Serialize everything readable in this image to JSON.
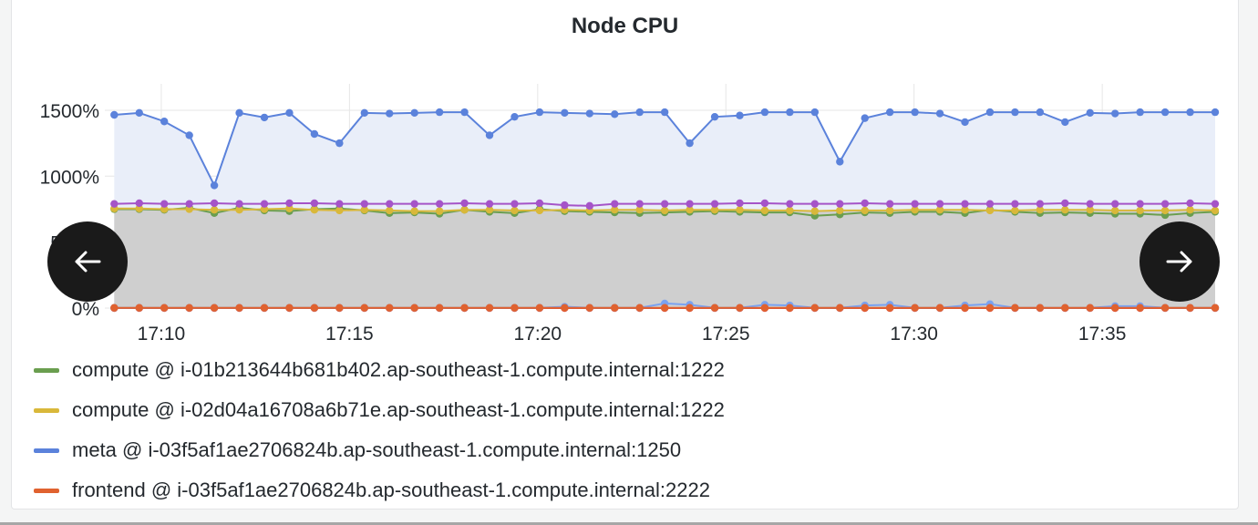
{
  "panel": {
    "title": "Node CPU"
  },
  "nav": {
    "prev_icon": "arrow-left-icon",
    "next_icon": "arrow-right-icon"
  },
  "colors": {
    "grid": "#e6e6e6",
    "band_fill": "#cfcfcf",
    "meta_fill": "#e9eef9",
    "button_bg": "#1a1a1a"
  },
  "chart_data": {
    "type": "line",
    "title": "Node CPU",
    "xlabel": "",
    "ylabel": "",
    "x_range": [
      "17:08:30",
      "17:38:00"
    ],
    "ylim": [
      0,
      1700
    ],
    "x_ticks": [
      "17:10",
      "17:15",
      "17:20",
      "17:25",
      "17:30",
      "17:35"
    ],
    "y_ticks": [
      "0%",
      "500%",
      "1000%",
      "1500%"
    ],
    "grid": true,
    "legend_position": "bottom",
    "series": [
      {
        "name": "compute @ i-01b213644b681b402.ap-southeast-1.compute.internal:1222",
        "color": "#6a9e4f",
        "values": [
          750,
          750,
          745,
          760,
          720,
          760,
          740,
          735,
          750,
          755,
          740,
          720,
          725,
          715,
          745,
          730,
          720,
          750,
          735,
          730,
          725,
          720,
          725,
          730,
          735,
          730,
          725,
          725,
          700,
          710,
          725,
          720,
          730,
          730,
          720,
          745,
          730,
          720,
          725,
          720,
          715,
          715,
          705,
          720,
          730
        ]
      },
      {
        "name": "compute @ i-02d04a16708a6b71e.ap-southeast-1.compute.internal:1222",
        "color": "#d9b83a",
        "values": [
          755,
          755,
          750,
          750,
          745,
          745,
          750,
          755,
          745,
          740,
          745,
          740,
          735,
          735,
          745,
          745,
          740,
          740,
          745,
          740,
          745,
          745,
          740,
          745,
          745,
          745,
          740,
          740,
          735,
          740,
          740,
          740,
          745,
          745,
          745,
          740,
          740,
          745,
          745,
          745,
          740,
          740,
          740,
          745,
          740
        ]
      },
      {
        "name": "meta @ i-03f5af1ae2706824b.ap-southeast-1.compute.internal:1250",
        "color": "#5b82db",
        "values": [
          1465,
          1480,
          1415,
          1310,
          930,
          1480,
          1445,
          1480,
          1320,
          1250,
          1480,
          1475,
          1480,
          1485,
          1485,
          1310,
          1450,
          1485,
          1480,
          1475,
          1470,
          1485,
          1485,
          1250,
          1450,
          1460,
          1485,
          1485,
          1485,
          1110,
          1440,
          1485,
          1485,
          1475,
          1410,
          1485,
          1485,
          1485,
          1410,
          1480,
          1475,
          1485,
          1485,
          1485,
          1485
        ]
      },
      {
        "name": "frontend @ i-03f5af1ae2706824b.ap-southeast-1.compute.internal:2222",
        "color": "#e0622f",
        "values": [
          2,
          2,
          2,
          2,
          2,
          2,
          2,
          2,
          2,
          2,
          2,
          2,
          2,
          2,
          2,
          2,
          2,
          2,
          2,
          2,
          2,
          2,
          2,
          2,
          2,
          2,
          2,
          2,
          2,
          2,
          2,
          2,
          2,
          2,
          2,
          2,
          2,
          2,
          2,
          2,
          2,
          2,
          2,
          2,
          2
        ]
      },
      {
        "color": "#a554c8",
        "values": [
          790,
          795,
          790,
          790,
          795,
          790,
          790,
          795,
          795,
          790,
          790,
          790,
          790,
          790,
          795,
          790,
          790,
          795,
          780,
          775,
          790,
          790,
          790,
          790,
          790,
          795,
          795,
          790,
          790,
          790,
          795,
          790,
          790,
          790,
          790,
          790,
          790,
          790,
          795,
          790,
          790,
          790,
          790,
          795,
          790
        ]
      },
      {
        "color": "#d64545",
        "values": [
          0,
          0,
          0,
          0,
          0,
          0,
          0,
          0,
          0,
          0,
          0,
          0,
          0,
          0,
          0,
          0,
          0,
          0,
          0,
          0,
          0,
          0,
          0,
          0,
          0,
          0,
          0,
          0,
          0,
          0,
          0,
          0,
          0,
          0,
          0,
          0,
          0,
          0,
          0,
          0,
          0,
          0,
          0,
          0,
          0
        ]
      },
      {
        "color": "#7aa2f0",
        "values": [
          2,
          2,
          2,
          2,
          2,
          2,
          2,
          2,
          2,
          2,
          2,
          2,
          2,
          2,
          2,
          2,
          2,
          2,
          10,
          2,
          2,
          2,
          35,
          25,
          2,
          2,
          25,
          20,
          2,
          2,
          20,
          25,
          2,
          2,
          20,
          30,
          2,
          2,
          2,
          2,
          15,
          15,
          2,
          2,
          2
        ]
      }
    ]
  }
}
